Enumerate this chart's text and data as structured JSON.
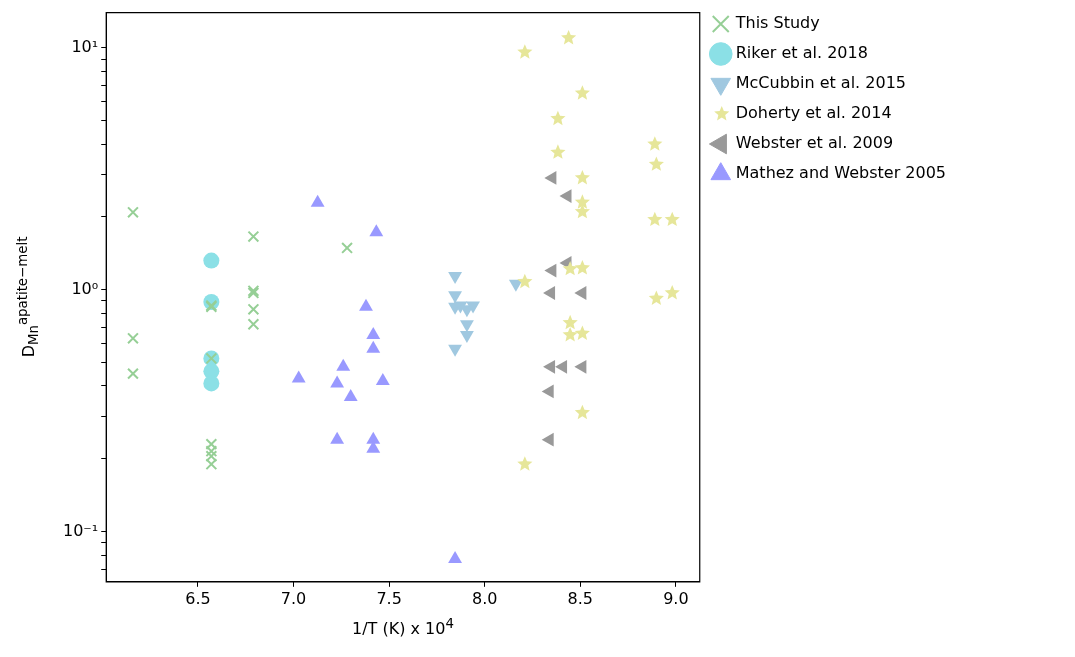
{
  "chart_data": {
    "type": "scatter",
    "xlabel": "1/T (K) x 10$^{4}$",
    "ylabel": "D$_{Mn}$$^{apatite−melt}$",
    "log": "y",
    "legend": "top right",
    "grid": false,
    "xlim": [
      6.02,
      9.125
    ],
    "xticks": [
      6.5,
      {
        "value": 7,
        "label": "7.0"
      },
      7.5,
      {
        "value": 8,
        "label": "8.0"
      },
      8.5,
      {
        "value": 9,
        "label": "9.0"
      }
    ],
    "ylim": [
      0.062,
      14
    ],
    "yticks": [
      {
        "value": 0.07,
        "label": null
      },
      {
        "value": 0.08,
        "label": null
      },
      {
        "value": 0.09,
        "label": null
      },
      {
        "value": 0.1,
        "label": "10⁻¹"
      },
      {
        "value": 0.2,
        "label": null
      },
      {
        "value": 0.3,
        "label": null
      },
      {
        "value": 0.4,
        "label": null
      },
      {
        "value": 0.5,
        "label": null
      },
      {
        "value": 0.6,
        "label": null
      },
      {
        "value": 0.7,
        "label": null
      },
      {
        "value": 0.8,
        "label": null
      },
      {
        "value": 0.9,
        "label": null
      },
      {
        "value": 1,
        "label": "10⁰"
      },
      {
        "value": 2,
        "label": null
      },
      {
        "value": 3,
        "label": null
      },
      {
        "value": 4,
        "label": null
      },
      {
        "value": 5,
        "label": null
      },
      {
        "value": 6,
        "label": null
      },
      {
        "value": 7,
        "label": null
      },
      {
        "value": 8,
        "label": null
      },
      {
        "value": 9,
        "label": null
      },
      {
        "value": 10,
        "label": "10¹"
      }
    ],
    "series": [
      {
        "name": "This Study",
        "color": "#96cf96",
        "marker": "cross",
        "x": [
          6.16,
          6.16,
          6.16,
          6.57,
          6.57,
          6.57,
          6.57,
          6.57,
          6.57,
          6.57,
          6.79,
          6.79,
          6.79,
          6.79,
          6.79,
          7.28
        ],
        "values": [
          2.09,
          0.63,
          0.45,
          0.85,
          0.86,
          0.52,
          0.23,
          0.215,
          0.205,
          0.19,
          1.66,
          0.99,
          0.97,
          0.83,
          0.72,
          1.49
        ]
      },
      {
        "name": "Riker et al. 2018",
        "color": "#8be0e6",
        "marker": "circle",
        "x": [
          6.57,
          6.57,
          6.57,
          6.57,
          6.57
        ],
        "values": [
          1.32,
          0.89,
          0.52,
          0.46,
          0.41
        ]
      },
      {
        "name": "McCubbin et al. 2015",
        "color": "#a0c8e0",
        "marker": "triangle_down",
        "x": [
          7.845,
          7.845,
          7.845,
          7.873,
          7.907,
          7.939,
          7.907,
          7.907,
          7.845,
          8.163
        ],
        "values": [
          1.14,
          0.95,
          0.85,
          0.86,
          0.83,
          0.86,
          0.72,
          0.65,
          0.57,
          1.06
        ]
      },
      {
        "name": "Doherty et al. 2014",
        "color": "#e6e699",
        "marker": "star",
        "x": [
          8.21,
          8.439,
          8.511,
          8.383,
          8.383,
          8.89,
          8.898,
          8.511,
          8.511,
          8.511,
          8.89,
          8.981,
          8.447,
          8.511,
          8.21,
          8.898,
          8.981,
          8.447,
          8.447,
          8.511,
          8.511,
          8.21
        ],
        "values": [
          9.6,
          11.0,
          6.5,
          5.1,
          3.7,
          4.0,
          3.3,
          2.9,
          2.3,
          2.1,
          1.95,
          1.95,
          1.22,
          1.23,
          1.08,
          0.92,
          0.97,
          0.73,
          0.65,
          0.66,
          0.31,
          0.19
        ]
      },
      {
        "name": "Webster et al. 2009",
        "color": "#999999",
        "marker": "triangle_left",
        "x": [
          8.354,
          8.433,
          8.433,
          8.354,
          8.347,
          8.511,
          8.347,
          8.41,
          8.511,
          8.34,
          8.34
        ],
        "values": [
          2.9,
          2.44,
          1.29,
          1.2,
          0.97,
          0.97,
          0.48,
          0.48,
          0.48,
          0.38,
          0.24
        ]
      },
      {
        "name": "Mathez and Webster 2005",
        "color": "#9999ff",
        "marker": "triangle",
        "x": [
          7.126,
          7.433,
          7.379,
          7.417,
          7.417,
          7.26,
          7.027,
          7.228,
          7.299,
          7.467,
          7.228,
          7.417,
          7.417,
          7.845
        ],
        "values": [
          2.29,
          1.73,
          0.85,
          0.65,
          0.57,
          0.48,
          0.43,
          0.41,
          0.36,
          0.42,
          0.24,
          0.24,
          0.22,
          0.077
        ]
      }
    ]
  }
}
